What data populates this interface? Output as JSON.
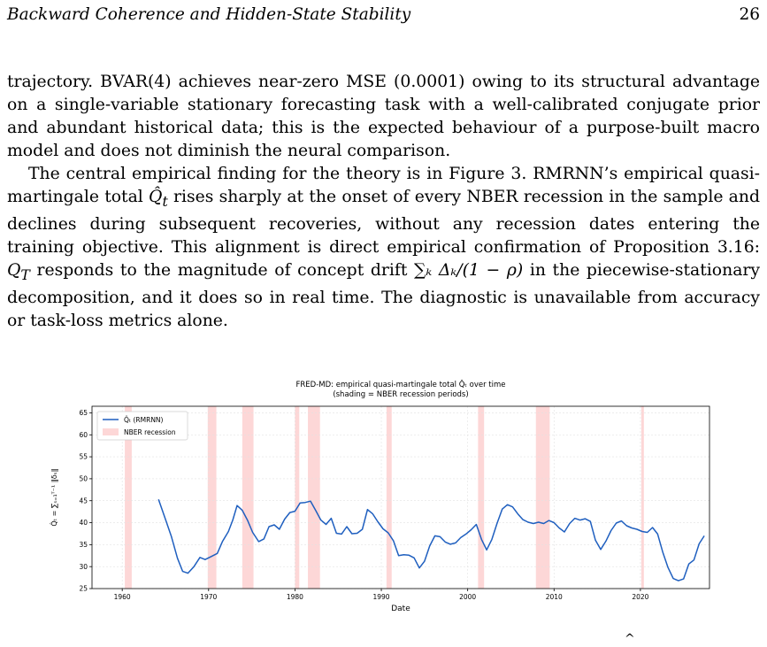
{
  "header": {
    "title": "Backward Coherence and Hidden-State Stability",
    "page_number": "26"
  },
  "paragraphs": {
    "p1": "trajectory. BVAR(4) achieves near-zero MSE (0.0001) owing to its structural advantage on a single-variable stationary forecasting task with a well-calibrated conjugate prior and abundant historical data; this is the expected behaviour of a purpose-built macro model and does not diminish the neural comparison.",
    "p2_a": "The central empirical finding for the theory is in Figure 3. RMRNN’s empirical quasi-martingale total ",
    "p2_sym1": "Q̂",
    "p2_sub1": "t",
    "p2_b": " rises sharply at the onset of every NBER recession in the sample and declines during subsequent recoveries, without any recession dates entering the training objective. This alignment is direct empirical confirmation of Proposition 3.16: ",
    "p2_sym2": "Q",
    "p2_sub2": "T",
    "p2_c": " responds to the magnitude of concept drift ",
    "p2_math": "∑ₖ Δₖ/(1 − ρ)",
    "p2_d": " in the piecewise-stationary decomposition, and it does so in real time. The diagnostic is unavailable from accuracy or task-loss metrics alone."
  },
  "footer_mark": "^",
  "chart_data": {
    "type": "line",
    "title": "FRED-MD: empirical quasi-martingale total Q̂ₜ over time",
    "subtitle": "(shading = NBER recession periods)",
    "xlabel": "Date",
    "ylabel": "Q̂ₜ = ∑ₛ₌₁ᵀ⁻¹ ‖δₛ‖",
    "xlim": [
      1956.5,
      2028
    ],
    "ylim": [
      25,
      66.5
    ],
    "xticks": [
      1960,
      1970,
      1980,
      1990,
      2000,
      2010,
      2020
    ],
    "yticks": [
      25,
      30,
      35,
      40,
      45,
      50,
      55,
      60,
      65
    ],
    "grid": true,
    "legend_position": "top-left",
    "legend": [
      "Q̂ₜ (RMRNN)",
      "NBER recession"
    ],
    "colors": {
      "line": "#1f5fbf",
      "recession": "#fdd7d7"
    },
    "recessions": [
      [
        1960.3,
        1961.1
      ],
      [
        1969.9,
        1970.9
      ],
      [
        1973.9,
        1975.2
      ],
      [
        1980.0,
        1980.5
      ],
      [
        1981.5,
        1982.9
      ],
      [
        1990.6,
        1991.2
      ],
      [
        2001.2,
        2001.9
      ],
      [
        2007.9,
        2009.5
      ],
      [
        2020.1,
        2020.4
      ]
    ],
    "series": [
      {
        "name": "Q̂ₜ (RMRNN)",
        "points": [
          [
            1964.2,
            45.3
          ],
          [
            1965.0,
            40.8
          ],
          [
            1965.7,
            36.8
          ],
          [
            1966.4,
            31.9
          ],
          [
            1967.0,
            28.9
          ],
          [
            1967.6,
            28.5
          ],
          [
            1968.3,
            30.0
          ],
          [
            1969.0,
            32.1
          ],
          [
            1969.6,
            31.6
          ],
          [
            1970.3,
            32.3
          ],
          [
            1971.0,
            33.0
          ],
          [
            1971.6,
            35.7
          ],
          [
            1972.3,
            38.0
          ],
          [
            1972.8,
            40.6
          ],
          [
            1973.3,
            43.9
          ],
          [
            1973.9,
            42.8
          ],
          [
            1974.5,
            40.6
          ],
          [
            1975.1,
            37.8
          ],
          [
            1975.8,
            35.7
          ],
          [
            1976.4,
            36.3
          ],
          [
            1977.0,
            39.1
          ],
          [
            1977.6,
            39.5
          ],
          [
            1978.2,
            38.5
          ],
          [
            1978.8,
            40.8
          ],
          [
            1979.4,
            42.3
          ],
          [
            1980.0,
            42.6
          ],
          [
            1980.6,
            44.5
          ],
          [
            1981.2,
            44.6
          ],
          [
            1981.8,
            44.9
          ],
          [
            1982.4,
            42.8
          ],
          [
            1983.0,
            40.6
          ],
          [
            1983.6,
            39.6
          ],
          [
            1984.2,
            41.0
          ],
          [
            1984.8,
            37.6
          ],
          [
            1985.4,
            37.4
          ],
          [
            1986.0,
            39.1
          ],
          [
            1986.6,
            37.5
          ],
          [
            1987.2,
            37.6
          ],
          [
            1987.8,
            38.5
          ],
          [
            1988.4,
            43.0
          ],
          [
            1989.0,
            42.0
          ],
          [
            1989.6,
            40.2
          ],
          [
            1990.2,
            38.6
          ],
          [
            1990.8,
            37.7
          ],
          [
            1991.4,
            35.9
          ],
          [
            1992.0,
            32.5
          ],
          [
            1992.6,
            32.7
          ],
          [
            1993.2,
            32.6
          ],
          [
            1993.8,
            32.0
          ],
          [
            1994.4,
            29.7
          ],
          [
            1995.0,
            31.2
          ],
          [
            1995.6,
            34.7
          ],
          [
            1996.2,
            37.0
          ],
          [
            1996.8,
            36.8
          ],
          [
            1997.4,
            35.6
          ],
          [
            1998.0,
            35.1
          ],
          [
            1998.6,
            35.4
          ],
          [
            1999.2,
            36.6
          ],
          [
            1999.8,
            37.4
          ],
          [
            2000.4,
            38.4
          ],
          [
            2001.0,
            39.6
          ],
          [
            2001.6,
            36.2
          ],
          [
            2002.2,
            33.8
          ],
          [
            2002.8,
            36.2
          ],
          [
            2003.4,
            39.8
          ],
          [
            2004.0,
            43.1
          ],
          [
            2004.6,
            44.1
          ],
          [
            2005.2,
            43.6
          ],
          [
            2005.8,
            42.0
          ],
          [
            2006.4,
            40.7
          ],
          [
            2007.0,
            40.1
          ],
          [
            2007.6,
            39.8
          ],
          [
            2008.2,
            40.1
          ],
          [
            2008.8,
            39.8
          ],
          [
            2009.4,
            40.5
          ],
          [
            2010.0,
            40.0
          ],
          [
            2010.6,
            38.8
          ],
          [
            2011.2,
            37.9
          ],
          [
            2011.8,
            39.8
          ],
          [
            2012.4,
            41.0
          ],
          [
            2013.0,
            40.6
          ],
          [
            2013.6,
            40.9
          ],
          [
            2014.2,
            40.3
          ],
          [
            2014.8,
            36.0
          ],
          [
            2015.4,
            33.9
          ],
          [
            2016.0,
            35.8
          ],
          [
            2016.6,
            38.2
          ],
          [
            2017.2,
            39.9
          ],
          [
            2017.8,
            40.4
          ],
          [
            2018.4,
            39.3
          ],
          [
            2019.0,
            38.8
          ],
          [
            2019.6,
            38.5
          ],
          [
            2020.2,
            38.0
          ],
          [
            2020.8,
            37.8
          ],
          [
            2021.4,
            38.9
          ],
          [
            2022.0,
            37.4
          ],
          [
            2022.6,
            33.2
          ],
          [
            2023.2,
            29.8
          ],
          [
            2023.8,
            27.3
          ],
          [
            2024.4,
            26.8
          ],
          [
            2025.0,
            27.2
          ],
          [
            2025.6,
            30.6
          ],
          [
            2026.2,
            31.5
          ],
          [
            2026.8,
            35.2
          ],
          [
            2027.4,
            37.0
          ]
        ]
      }
    ]
  }
}
